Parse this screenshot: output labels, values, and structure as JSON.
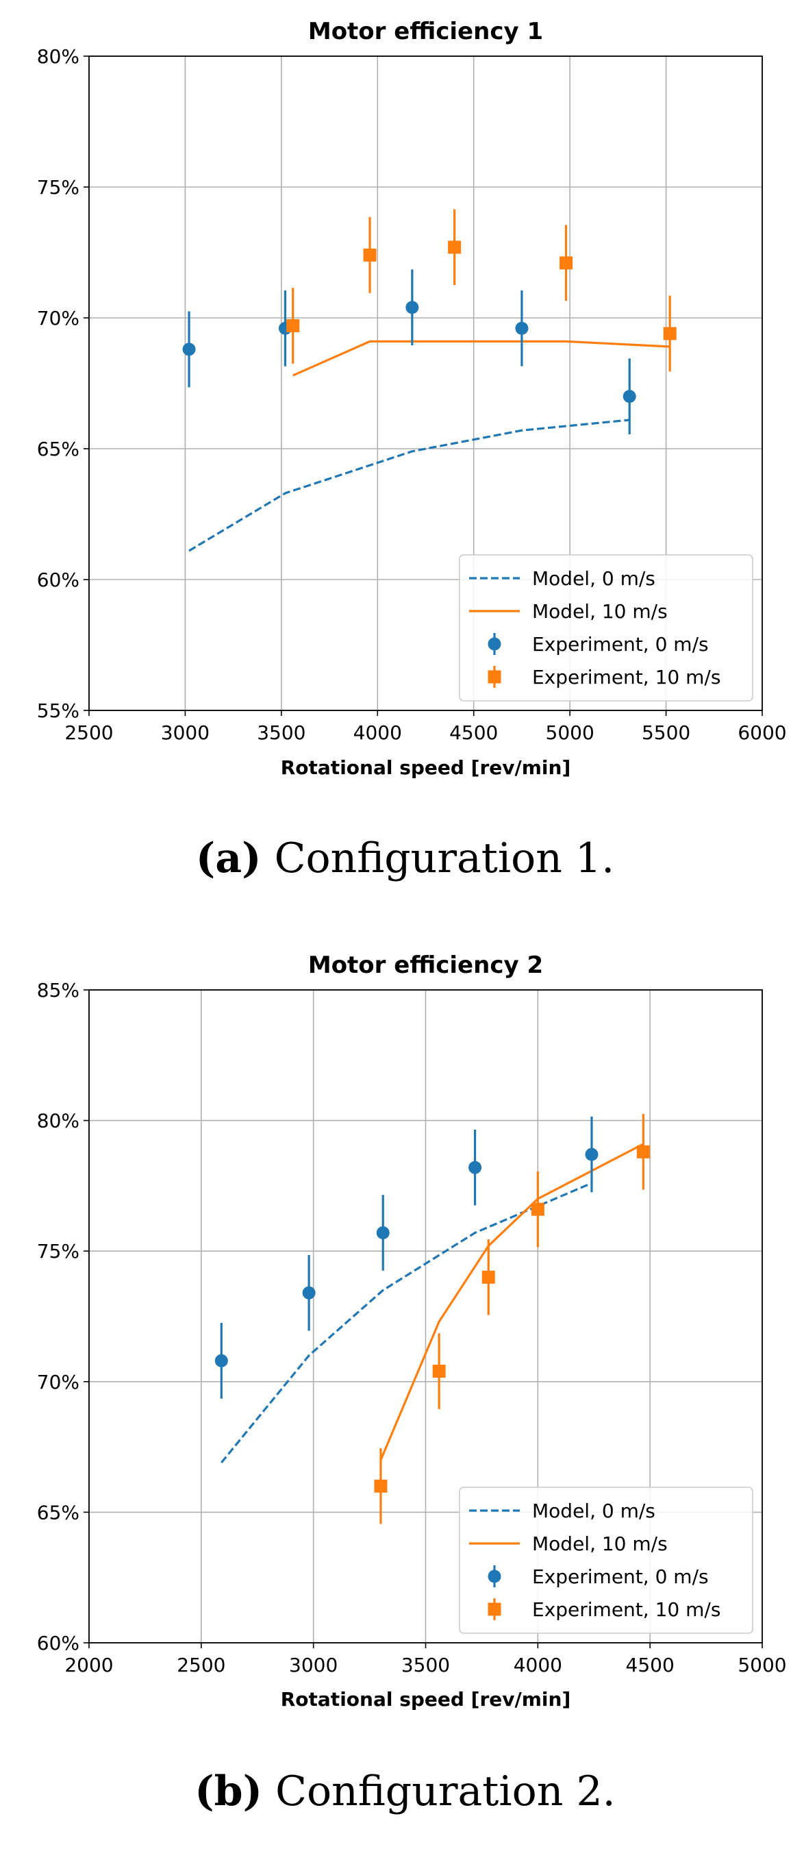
{
  "chart_data": [
    {
      "type": "line",
      "title": "Motor efficiency 1",
      "xlabel": "Rotational speed [rev/min]",
      "ylabel": "",
      "xlim": [
        2500,
        6000
      ],
      "ylim": [
        55,
        80
      ],
      "xticks": [
        2500,
        3000,
        3500,
        4000,
        4500,
        5000,
        5500,
        6000
      ],
      "xtick_labels": [
        "2500",
        "3000",
        "3500",
        "4000",
        "4500",
        "5000",
        "5500",
        "6000"
      ],
      "yticks": [
        55,
        60,
        65,
        70,
        75,
        80
      ],
      "ytick_labels": [
        "55%",
        "60%",
        "65%",
        "70%",
        "75%",
        "80%"
      ],
      "grid": true,
      "legend_position": "bottom-right",
      "series": [
        {
          "name": "Model, 0 m/s",
          "kind": "line",
          "style": "dashed",
          "color": "#1f77b4",
          "x": [
            3020,
            3520,
            4180,
            4750,
            5310
          ],
          "y": [
            61.1,
            63.3,
            64.9,
            65.7,
            66.1
          ]
        },
        {
          "name": "Model, 10 m/s",
          "kind": "line",
          "style": "solid",
          "color": "#ff7f0e",
          "x": [
            3560,
            3960,
            4400,
            4980,
            5520
          ],
          "y": [
            67.8,
            69.1,
            69.1,
            69.1,
            68.9
          ]
        },
        {
          "name": "Experiment, 0 m/s",
          "kind": "errorbar",
          "marker": "circle",
          "color": "#1f77b4",
          "x": [
            3020,
            3520,
            4180,
            4750,
            5310
          ],
          "y": [
            68.8,
            69.6,
            70.4,
            69.6,
            67.0
          ],
          "err": [
            1.45,
            1.45,
            1.45,
            1.45,
            1.45
          ]
        },
        {
          "name": "Experiment, 10 m/s",
          "kind": "errorbar",
          "marker": "square",
          "color": "#ff7f0e",
          "x": [
            3560,
            3960,
            4400,
            4980,
            5520
          ],
          "y": [
            69.7,
            72.4,
            72.7,
            72.1,
            69.4
          ],
          "err": [
            1.45,
            1.45,
            1.45,
            1.45,
            1.45
          ]
        }
      ],
      "caption_letter": "(a)",
      "caption_text": " Configuration 1."
    },
    {
      "type": "line",
      "title": "Motor efficiency 2",
      "xlabel": "Rotational speed [rev/min]",
      "ylabel": "",
      "xlim": [
        2000,
        5000
      ],
      "ylim": [
        60,
        85
      ],
      "xticks": [
        2000,
        2500,
        3000,
        3500,
        4000,
        4500,
        5000
      ],
      "xtick_labels": [
        "2000",
        "2500",
        "3000",
        "3500",
        "4000",
        "4500",
        "5000"
      ],
      "yticks": [
        60,
        65,
        70,
        75,
        80,
        85
      ],
      "ytick_labels": [
        "60%",
        "65%",
        "70%",
        "75%",
        "80%",
        "85%"
      ],
      "grid": true,
      "legend_position": "bottom-right",
      "series": [
        {
          "name": "Model, 0 m/s",
          "kind": "line",
          "style": "dashed",
          "color": "#1f77b4",
          "x": [
            2590,
            2980,
            3310,
            3720,
            4240
          ],
          "y": [
            66.9,
            71.0,
            73.5,
            75.7,
            77.6
          ]
        },
        {
          "name": "Model, 10 m/s",
          "kind": "line",
          "style": "solid",
          "color": "#ff7f0e",
          "x": [
            3300,
            3560,
            3780,
            4000,
            4470
          ],
          "y": [
            67.0,
            72.3,
            75.2,
            77.0,
            79.1
          ]
        },
        {
          "name": "Experiment, 0 m/s",
          "kind": "errorbar",
          "marker": "circle",
          "color": "#1f77b4",
          "x": [
            2590,
            2980,
            3310,
            3720,
            4240
          ],
          "y": [
            70.8,
            73.4,
            75.7,
            78.2,
            78.7
          ],
          "err": [
            1.45,
            1.45,
            1.45,
            1.45,
            1.45
          ]
        },
        {
          "name": "Experiment, 10 m/s",
          "kind": "errorbar",
          "marker": "square",
          "color": "#ff7f0e",
          "x": [
            3300,
            3560,
            3780,
            4000,
            4470
          ],
          "y": [
            66.0,
            70.4,
            74.0,
            76.6,
            78.8
          ],
          "err": [
            1.45,
            1.45,
            1.45,
            1.45,
            1.45
          ]
        }
      ],
      "caption_letter": "(b)",
      "caption_text": " Configuration 2."
    }
  ]
}
